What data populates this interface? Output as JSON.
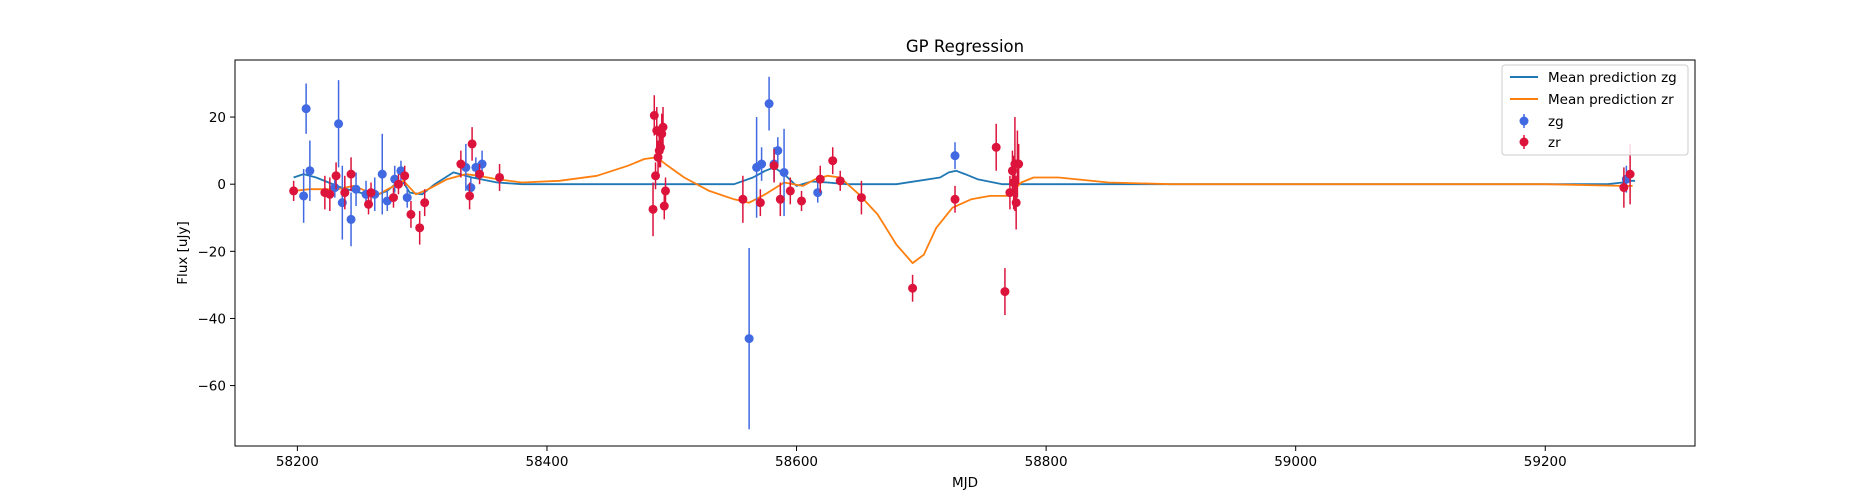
{
  "chart_data": {
    "type": "scatter",
    "title": "GP Regression",
    "xlabel": "MJD",
    "ylabel": "Flux [uJy]",
    "xlim": [
      58150,
      59320
    ],
    "ylim": [
      -78,
      37
    ],
    "x_ticks": [
      58200,
      58400,
      58600,
      58800,
      59000,
      59200
    ],
    "x_tick_labels": [
      "58200",
      "58400",
      "58600",
      "58800",
      "59000",
      "59200"
    ],
    "y_ticks": [
      20,
      0,
      -20,
      -40,
      -60
    ],
    "y_tick_labels": [
      "20",
      "0",
      "−20",
      "−40",
      "−60"
    ],
    "grid": false,
    "legend_placement": "top-right",
    "legend": [
      {
        "label": "Mean prediction zg",
        "kind": "line",
        "color": "#1f77b4"
      },
      {
        "label": "Mean prediction zr",
        "kind": "line",
        "color": "#ff7f0e"
      },
      {
        "label": "zg",
        "kind": "errorbar",
        "color": "#4169e1"
      },
      {
        "label": "zr",
        "kind": "errorbar",
        "color": "#dc143c"
      }
    ],
    "series": [
      {
        "name": "Mean prediction zg",
        "type": "line",
        "color": "#1f77b4",
        "x": [
          58197,
          58205,
          58215,
          58225,
          58235,
          58245,
          58255,
          58265,
          58272,
          58280,
          58285,
          58290,
          58300,
          58310,
          58325,
          58340,
          58360,
          58380,
          58420,
          58500,
          58550,
          58565,
          58575,
          58582,
          58590,
          58600,
          58612,
          58625,
          58640,
          58680,
          58715,
          58722,
          58728,
          58735,
          58745,
          58765,
          58800,
          58850,
          59000,
          59200,
          59250,
          59262,
          59268,
          59272
        ],
        "y": [
          2,
          3,
          2,
          0.5,
          -1,
          -2,
          -3,
          -3,
          -2,
          0.5,
          0.5,
          -2.5,
          -3,
          0,
          3.5,
          2,
          0.5,
          0,
          0,
          0,
          0,
          2,
          4,
          5,
          3,
          -0.5,
          0.8,
          0.5,
          0,
          0,
          2,
          3.5,
          4,
          3,
          1.5,
          0,
          0,
          0,
          0,
          0,
          0,
          0.5,
          1,
          1
        ]
      },
      {
        "name": "Mean prediction zr",
        "type": "line",
        "color": "#ff7f0e",
        "x": [
          58197,
          58210,
          58220,
          58232,
          58245,
          58255,
          58265,
          58275,
          58285,
          58295,
          58305,
          58320,
          58335,
          58345,
          58360,
          58380,
          58410,
          58440,
          58465,
          58478,
          58488,
          58495,
          58510,
          58530,
          58550,
          58562,
          58575,
          58590,
          58605,
          58615,
          58625,
          58635,
          58650,
          58665,
          58680,
          58693,
          58702,
          58712,
          58725,
          58740,
          58755,
          58770,
          58780,
          58790,
          58810,
          58850,
          58900,
          59000,
          59100,
          59200,
          59262,
          59270
        ],
        "y": [
          -2,
          -1.5,
          -1.5,
          -1.5,
          -0.5,
          -2,
          -3,
          -1,
          1,
          -3,
          -1.5,
          1.5,
          3,
          2.5,
          1.5,
          0.5,
          1,
          2.5,
          5.5,
          7.5,
          8,
          6,
          2,
          -2,
          -4.5,
          -5.5,
          -3,
          0.5,
          -0.5,
          1.5,
          2.5,
          2,
          -3,
          -9,
          -18,
          -23.5,
          -21,
          -13,
          -7,
          -4.5,
          -3.5,
          -3.5,
          0.5,
          2,
          2,
          0.5,
          0,
          0,
          0,
          0,
          -0.5,
          -0.5
        ]
      },
      {
        "name": "zg",
        "type": "errorbar",
        "color": "#4169e1",
        "x": [
          58205,
          58207,
          58210,
          58230,
          58233,
          58236,
          58243,
          58247,
          58255,
          58262,
          58268,
          58272,
          58278,
          58283,
          58288,
          58335,
          58339,
          58343,
          58348,
          58562,
          58568,
          58572,
          58578,
          58582,
          58585,
          58590,
          58617,
          58727,
          59265
        ],
        "y": [
          -3.5,
          22.5,
          4,
          -1,
          18,
          -5.5,
          -10.5,
          -1.5,
          -3,
          -3,
          3,
          -5,
          1.5,
          4,
          -4,
          5,
          -1,
          5,
          6,
          -46,
          5,
          6,
          24,
          6,
          10,
          3.5,
          -2.5,
          8.5,
          1.5
        ],
        "yerr": [
          8,
          7.5,
          9,
          3,
          13,
          11,
          8,
          5,
          4,
          5,
          12,
          3,
          4,
          3,
          3,
          7,
          3,
          3,
          4,
          27,
          15,
          5,
          8,
          5,
          4,
          13,
          3,
          4,
          4
        ]
      },
      {
        "name": "zr",
        "type": "errorbar",
        "color": "#dc143c",
        "x": [
          58197,
          58222,
          58226,
          58231,
          58238,
          58243,
          58257,
          58259,
          58277,
          58281,
          58286,
          58291,
          58298,
          58302,
          58331,
          58338,
          58340,
          58346,
          58362,
          58485,
          58486,
          58487,
          58488,
          58489,
          58490,
          58491,
          58492,
          58493,
          58494,
          58495,
          58557,
          58571,
          58582,
          58587,
          58595,
          58604,
          58619,
          58629,
          58635,
          58652,
          58693,
          58727,
          58760,
          58767,
          58771,
          58773,
          58774,
          58775,
          58776,
          58777,
          58778,
          59263,
          59268
        ],
        "y": [
          -2,
          -2.5,
          -3,
          2.5,
          -2.5,
          3,
          -6,
          -2.5,
          -4,
          0,
          2.5,
          -9,
          -13,
          -5.5,
          6,
          -3.5,
          12,
          3,
          2,
          -7.5,
          20.5,
          2.5,
          16,
          8,
          10,
          11,
          15,
          17,
          -6.5,
          -2,
          -4.5,
          -5.5,
          5.5,
          -4.5,
          -2,
          -5,
          1.5,
          7,
          1,
          -4,
          -31,
          -4.5,
          11,
          -32,
          -2.5,
          4,
          0.5,
          6,
          -5.5,
          6,
          6,
          -1,
          3
        ],
        "yerr": [
          3,
          5,
          5,
          4,
          5,
          5,
          3,
          3,
          3,
          3,
          3,
          4,
          5,
          4,
          4,
          4,
          5,
          3,
          4,
          8,
          6,
          4,
          7,
          5,
          5,
          6,
          6,
          6,
          4,
          4,
          7,
          4,
          5,
          5,
          4,
          3,
          4,
          4,
          3,
          5,
          4,
          4,
          7,
          7,
          5,
          6,
          8,
          14,
          8,
          10,
          6,
          6,
          9
        ]
      }
    ]
  }
}
